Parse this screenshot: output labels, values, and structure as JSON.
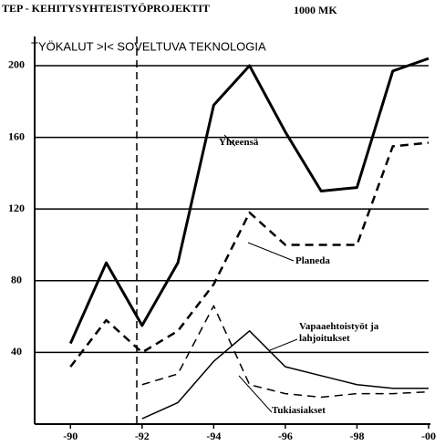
{
  "chart_data": {
    "type": "line",
    "title": "TEP - KEHITYSYHTEISTYÖPROJEKTIT",
    "unit_label": "1000 MK",
    "subtitle": "TYÖKALUT >I< SOVELTUVA TEKNOLOGIA",
    "x": [
      1990,
      1991,
      1992,
      1993,
      1994,
      1995,
      1996,
      1997,
      1998,
      1999,
      2000
    ],
    "series": [
      {
        "name": "Yhteensä",
        "color": "#000000",
        "style": "solid",
        "width": 3,
        "values": [
          45,
          90,
          55,
          90,
          178,
          200,
          163,
          130,
          132,
          197,
          204
        ]
      },
      {
        "name": "Planeda",
        "color": "#000000",
        "style": "dashed",
        "width": 2.5,
        "values": [
          32,
          58,
          40,
          52,
          78,
          118,
          100,
          100,
          100,
          155,
          157
        ]
      },
      {
        "name": "Vapaaehtoistyöt ja lahjoitukset",
        "color": "#000000",
        "style": "solid",
        "width": 1.5,
        "values": [
          null,
          null,
          3,
          12,
          35,
          52,
          32,
          27,
          22,
          20,
          20
        ]
      },
      {
        "name": "Tukiasiakset",
        "color": "#000000",
        "style": "dashed",
        "width": 1.5,
        "values": [
          null,
          null,
          22,
          28,
          66,
          22,
          17,
          15,
          17,
          17,
          18
        ]
      }
    ],
    "xlim": [
      1989,
      2000
    ],
    "xticks": [
      {
        "value": 1990,
        "label": "-90"
      },
      {
        "value": 1992,
        "label": "-92"
      },
      {
        "value": 1994,
        "label": "-94"
      },
      {
        "value": 1996,
        "label": "-96"
      },
      {
        "value": 1998,
        "label": "-98"
      },
      {
        "value": 2000,
        "label": "-00"
      }
    ],
    "ylim": [
      0,
      215
    ],
    "yticks": [
      40,
      80,
      120,
      160,
      200
    ],
    "grid": true
  }
}
